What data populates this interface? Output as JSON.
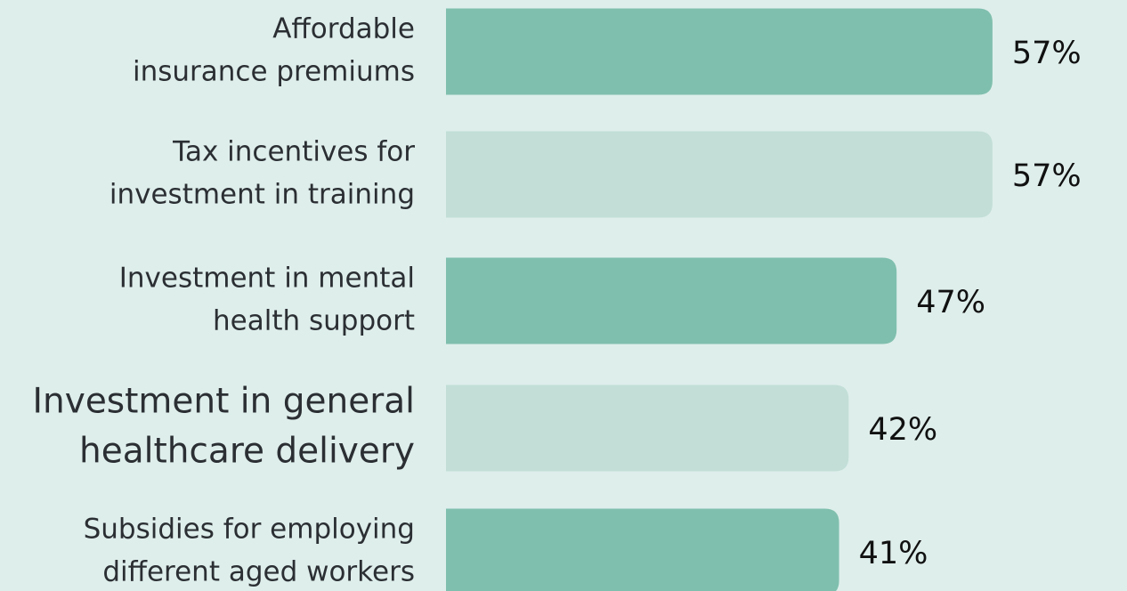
{
  "chart_data": {
    "type": "bar",
    "categories": [
      [
        "Affordable",
        "insurance premiums"
      ],
      [
        "Tax incentives for",
        "investment in training"
      ],
      [
        "Investment in mental",
        "health support"
      ],
      [
        "Investment in general",
        "healthcare delivery"
      ],
      [
        "Subsidies for employing",
        "different aged workers"
      ]
    ],
    "values": [
      57,
      57,
      47,
      42,
      41
    ],
    "value_labels": [
      "57%",
      "57%",
      "47%",
      "42%",
      "41%"
    ],
    "colors": [
      "#7fbfad",
      "#c2ded7",
      "#7fbfad",
      "#c2ded7",
      "#7fbfad"
    ]
  }
}
